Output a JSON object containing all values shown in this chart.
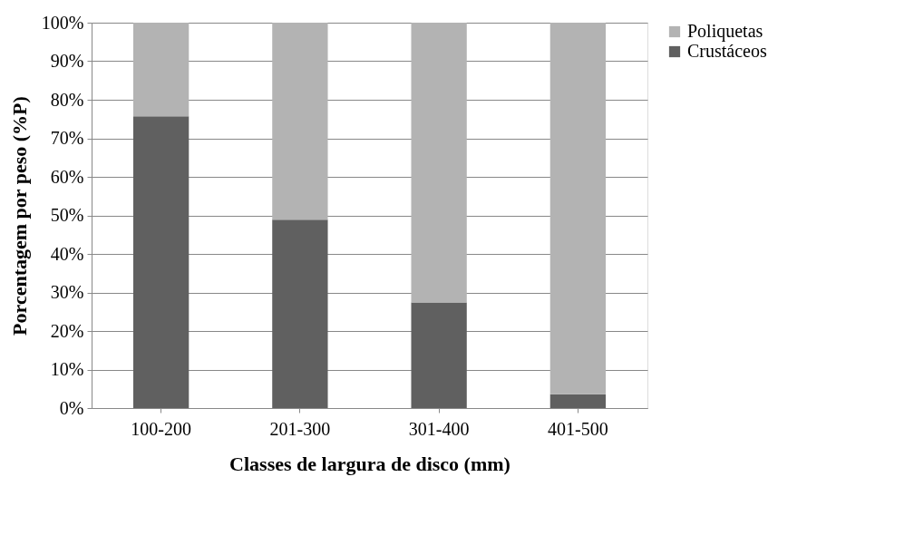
{
  "chart_data": {
    "type": "bar",
    "stacked": true,
    "xlabel": "Classes de largura de disco (mm)",
    "ylabel": "Porcentagem por peso (%P)",
    "categories": [
      "100-200",
      "201-300",
      "301-400",
      "401-500"
    ],
    "series": [
      {
        "name": "Crustáceos",
        "color": "#606060",
        "values": [
          75.7,
          48.9,
          27.4,
          3.6
        ]
      },
      {
        "name": "Poliquetas",
        "color": "#b3b3b3",
        "values": [
          24.3,
          51.1,
          72.6,
          96.4
        ]
      }
    ],
    "ylim": [
      0,
      100
    ],
    "yticks": [
      {
        "value": 0,
        "label": "0%"
      },
      {
        "value": 10,
        "label": "10%"
      },
      {
        "value": 20,
        "label": "20%"
      },
      {
        "value": 30,
        "label": "30%"
      },
      {
        "value": 40,
        "label": "40%"
      },
      {
        "value": 50,
        "label": "50%"
      },
      {
        "value": 60,
        "label": "60%"
      },
      {
        "value": 70,
        "label": "70%"
      },
      {
        "value": 80,
        "label": "80%"
      },
      {
        "value": 90,
        "label": "90%"
      },
      {
        "value": 100,
        "label": "100%"
      }
    ],
    "grid": "y",
    "legend": "right"
  }
}
